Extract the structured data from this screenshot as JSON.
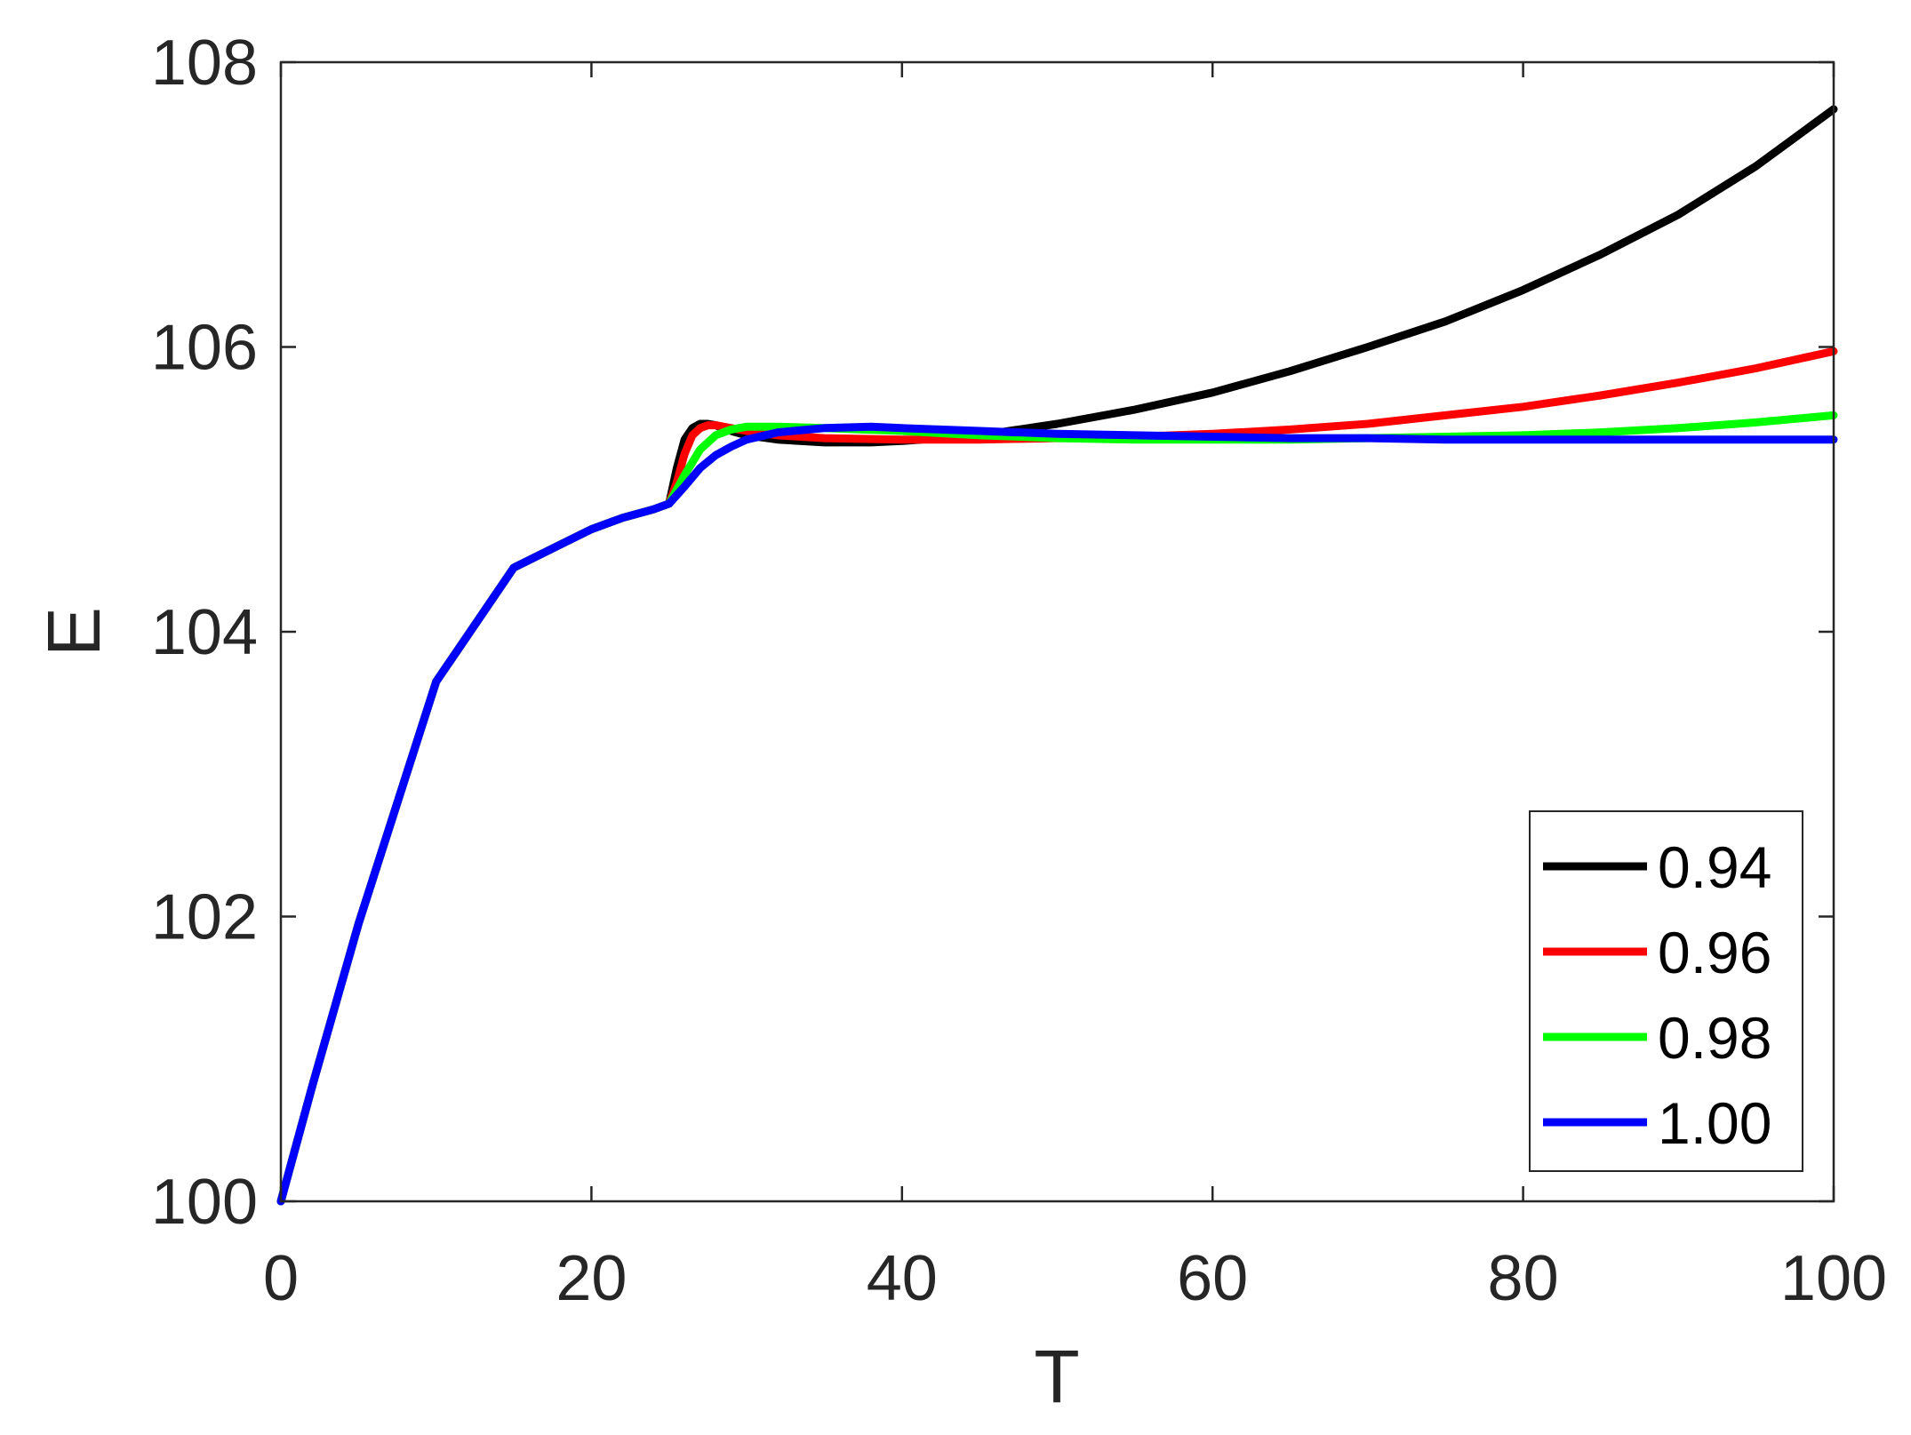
{
  "chart_data": {
    "type": "line",
    "title": "",
    "xlabel": "T",
    "ylabel": "E",
    "xlim": [
      0,
      100
    ],
    "ylim": [
      100,
      108
    ],
    "xticks": [
      "0",
      "20",
      "40",
      "60",
      "80",
      "100"
    ],
    "yticks": [
      "100",
      "102",
      "104",
      "106",
      "108"
    ],
    "grid": false,
    "legend_position": "bottom-right",
    "series": [
      {
        "name": "0.94",
        "color": "#000000",
        "x": [
          0,
          2,
          5,
          10,
          15,
          20,
          22,
          24,
          25,
          25.5,
          26,
          26.5,
          27,
          27.5,
          28,
          29,
          30,
          32,
          35,
          38,
          40,
          45,
          50,
          55,
          60,
          65,
          70,
          75,
          80,
          85,
          90,
          95,
          100
        ],
        "y": [
          100,
          100.8,
          101.95,
          103.65,
          104.45,
          104.72,
          104.8,
          104.86,
          104.9,
          105.15,
          105.35,
          105.43,
          105.46,
          105.46,
          105.45,
          105.41,
          105.38,
          105.35,
          105.33,
          105.33,
          105.34,
          105.38,
          105.46,
          105.56,
          105.68,
          105.83,
          106.0,
          106.18,
          106.4,
          106.65,
          106.93,
          107.27,
          107.67
        ]
      },
      {
        "name": "0.96",
        "color": "#ff0000",
        "x": [
          0,
          2,
          5,
          10,
          15,
          20,
          22,
          24,
          25,
          25.5,
          26,
          26.5,
          27,
          27.5,
          28,
          29,
          30,
          32,
          35,
          40,
          45,
          50,
          55,
          60,
          65,
          70,
          75,
          80,
          85,
          90,
          95,
          100
        ],
        "y": [
          100,
          100.8,
          101.95,
          103.65,
          104.45,
          104.72,
          104.8,
          104.86,
          104.9,
          105.05,
          105.25,
          105.38,
          105.43,
          105.45,
          105.45,
          105.43,
          105.41,
          105.38,
          105.36,
          105.35,
          105.35,
          105.36,
          105.37,
          105.39,
          105.42,
          105.46,
          105.52,
          105.58,
          105.66,
          105.75,
          105.85,
          105.97
        ]
      },
      {
        "name": "0.98",
        "color": "#00ff00",
        "x": [
          0,
          2,
          5,
          10,
          15,
          20,
          22,
          24,
          25,
          26,
          27,
          28,
          29,
          30,
          32,
          35,
          40,
          45,
          50,
          55,
          60,
          65,
          70,
          75,
          80,
          85,
          90,
          95,
          100
        ],
        "y": [
          100,
          100.8,
          101.95,
          103.65,
          104.45,
          104.72,
          104.8,
          104.86,
          104.9,
          105.1,
          105.28,
          105.38,
          105.42,
          105.44,
          105.44,
          105.43,
          105.41,
          105.38,
          105.36,
          105.35,
          105.35,
          105.35,
          105.36,
          105.37,
          105.38,
          105.4,
          105.43,
          105.47,
          105.52
        ]
      },
      {
        "name": "1.00",
        "color": "#0000ff",
        "x": [
          0,
          2,
          5,
          10,
          15,
          20,
          22,
          24,
          25,
          26,
          27,
          28,
          29,
          30,
          32,
          35,
          38,
          40,
          45,
          50,
          55,
          60,
          65,
          70,
          75,
          80,
          85,
          90,
          95,
          100
        ],
        "y": [
          100,
          100.8,
          101.95,
          103.65,
          104.45,
          104.72,
          104.8,
          104.86,
          104.9,
          105.02,
          105.15,
          105.24,
          105.3,
          105.35,
          105.4,
          105.43,
          105.44,
          105.43,
          105.41,
          105.39,
          105.38,
          105.37,
          105.36,
          105.36,
          105.35,
          105.35,
          105.35,
          105.35,
          105.35,
          105.35
        ]
      }
    ]
  }
}
